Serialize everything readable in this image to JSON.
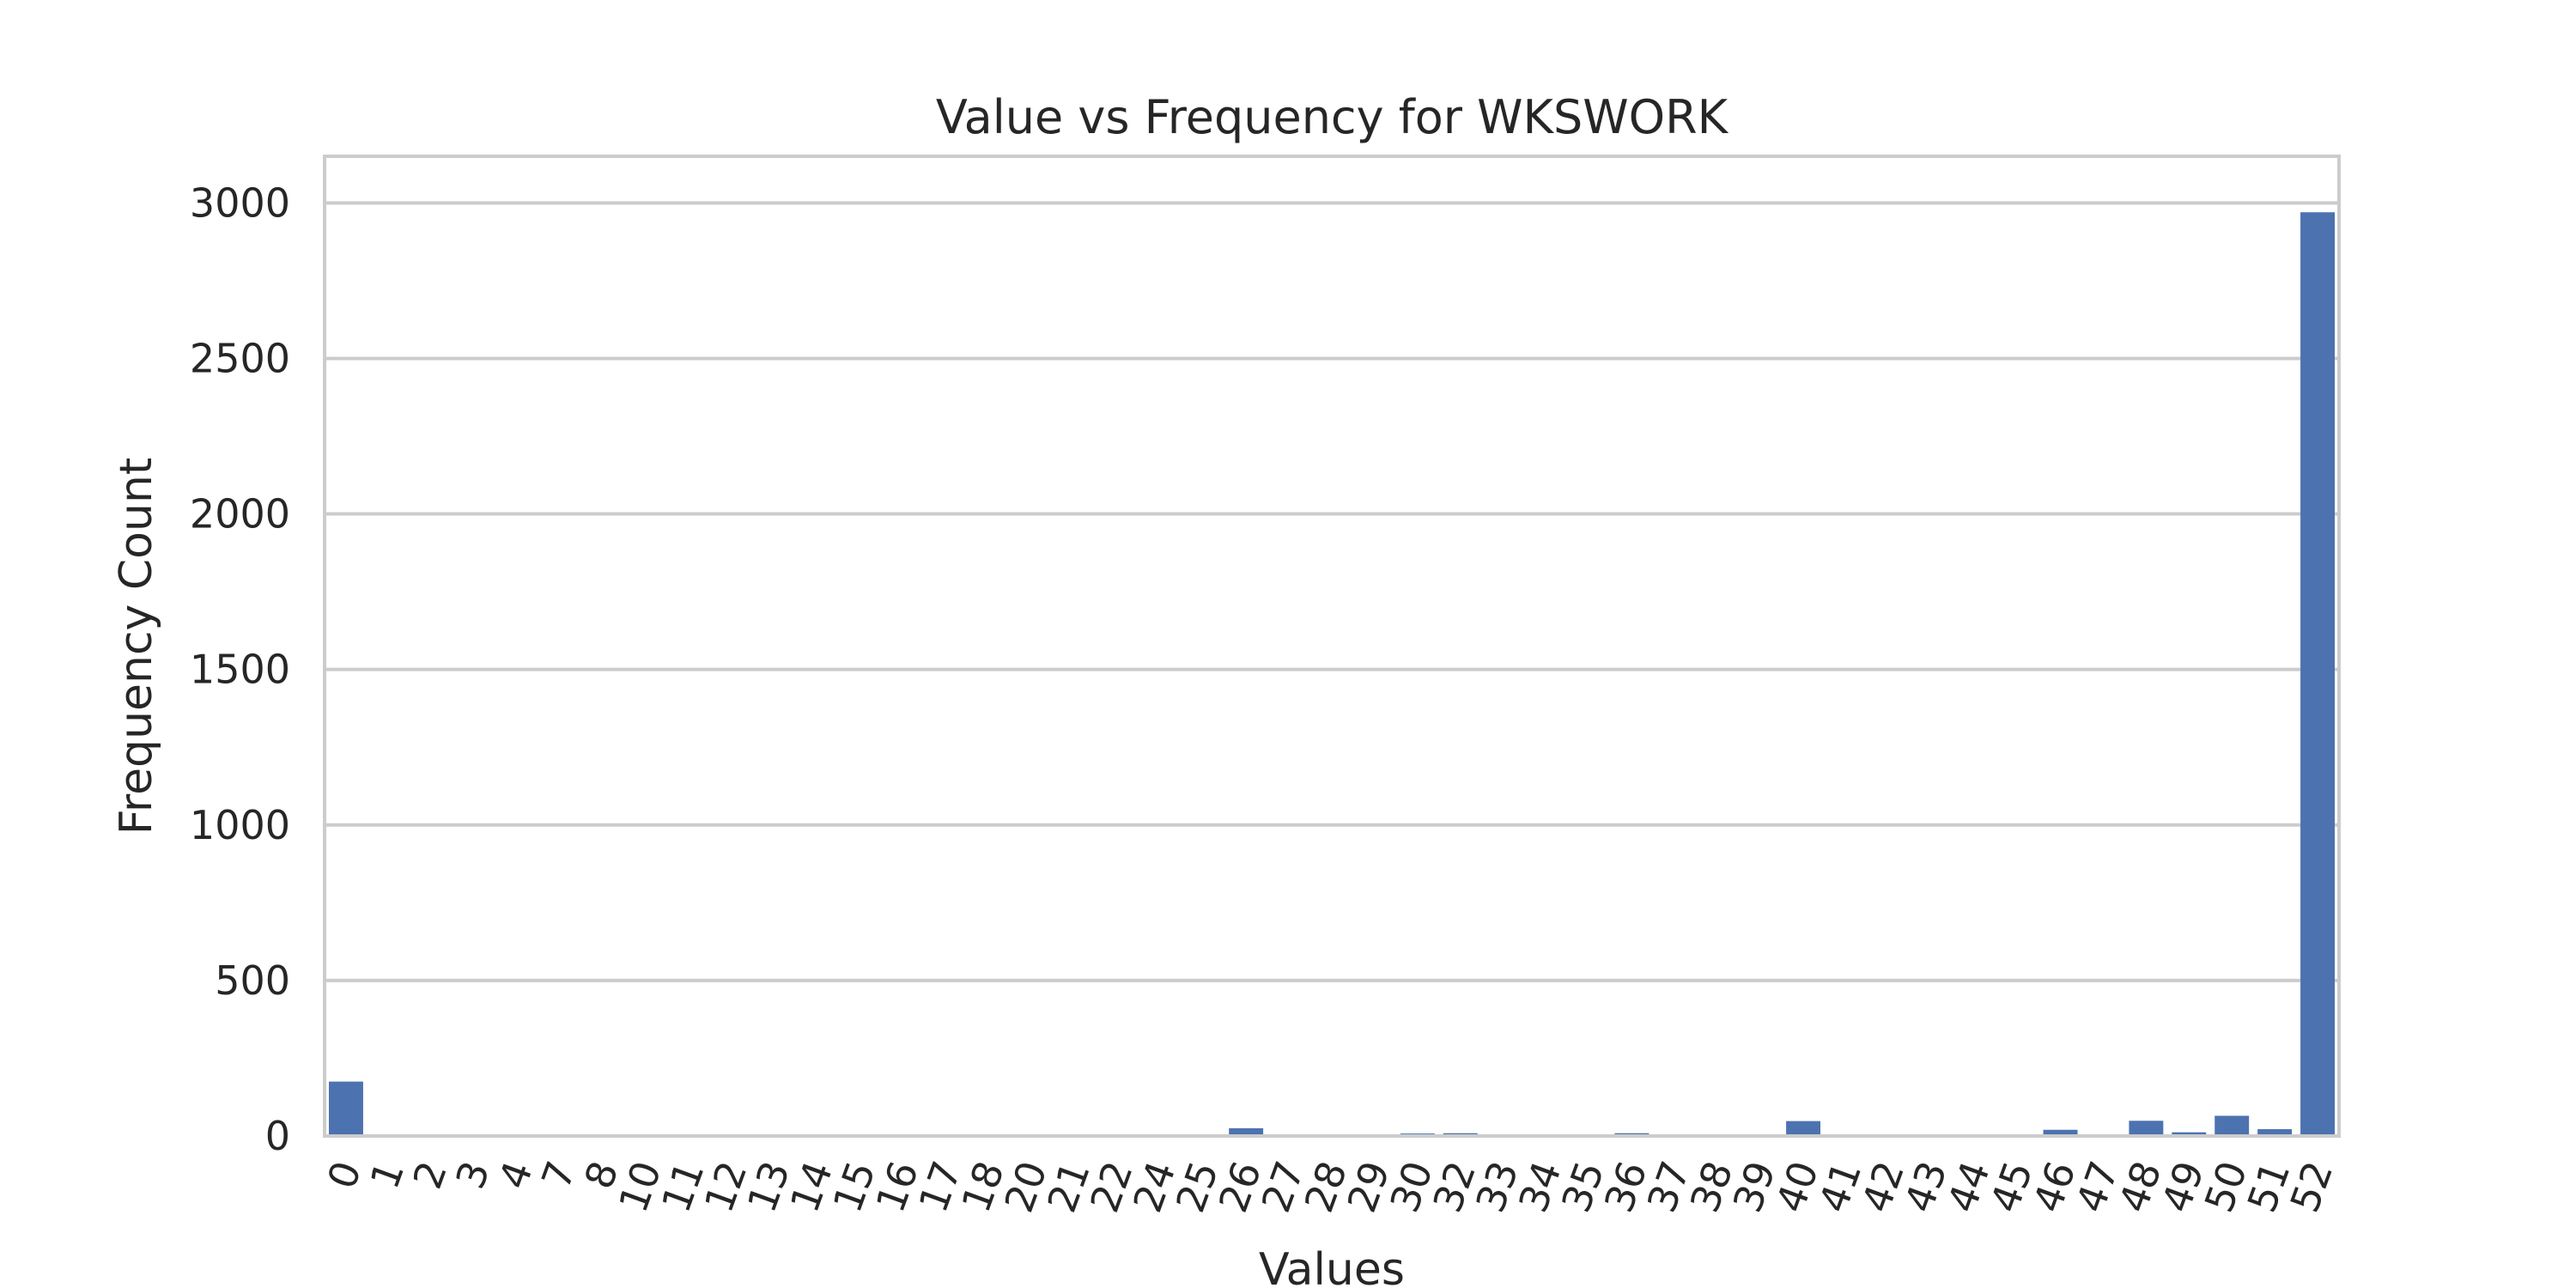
{
  "chart_data": {
    "type": "bar",
    "title": "Value vs Frequency for WKSWORK",
    "xlabel": "Values",
    "ylabel": "Frequency Count",
    "ylim": [
      0,
      3150
    ],
    "yticks": [
      0,
      500,
      1000,
      1500,
      2000,
      2500,
      3000
    ],
    "grid": "horizontal",
    "bar_color": "#4c72b0",
    "categories": [
      "0",
      "1",
      "2",
      "3",
      "4",
      "7",
      "8",
      "10",
      "11",
      "12",
      "13",
      "14",
      "15",
      "16",
      "17",
      "18",
      "20",
      "21",
      "22",
      "24",
      "25",
      "26",
      "27",
      "28",
      "29",
      "30",
      "32",
      "33",
      "34",
      "35",
      "36",
      "37",
      "38",
      "39",
      "40",
      "41",
      "42",
      "43",
      "44",
      "45",
      "46",
      "47",
      "48",
      "49",
      "50",
      "51",
      "52"
    ],
    "values": [
      175,
      1,
      2,
      1,
      1,
      1,
      2,
      2,
      1,
      2,
      1,
      1,
      1,
      2,
      1,
      1,
      3,
      1,
      1,
      1,
      2,
      25,
      1,
      1,
      1,
      8,
      9,
      1,
      2,
      3,
      9,
      1,
      1,
      3,
      48,
      2,
      2,
      2,
      2,
      3,
      20,
      4,
      49,
      12,
      65,
      22,
      2970
    ]
  }
}
